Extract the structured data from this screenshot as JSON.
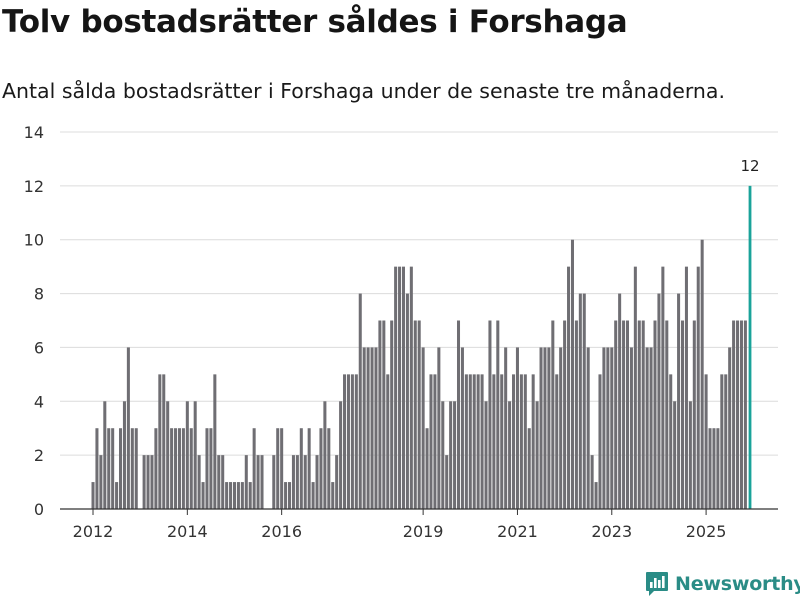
{
  "title": "Tolv bostadsrätter såldes i Forshaga",
  "subtitle": "Antal sålda bostadsrätter i Forshaga under de senaste tre månaderna.",
  "brand": "Newsworthy",
  "colors": {
    "bar": "#6f6e73",
    "highlight": "#1aa39a",
    "grid": "#dcdcdc",
    "axis": "#333333",
    "brand": "#2a8c86"
  },
  "chart_data": {
    "type": "bar",
    "title": "Tolv bostadsrätter såldes i Forshaga",
    "xlabel": "",
    "ylabel": "",
    "ylim": [
      0,
      14
    ],
    "yticks": [
      "0",
      "2",
      "4",
      "6",
      "8",
      "10",
      "12",
      "14"
    ],
    "xticks": [
      {
        "label": "2012",
        "index": 0
      },
      {
        "label": "2014",
        "index": 24
      },
      {
        "label": "2016",
        "index": 48
      },
      {
        "label": "2019",
        "index": 84
      },
      {
        "label": "2021",
        "index": 108
      },
      {
        "label": "2023",
        "index": 132
      },
      {
        "label": "2025",
        "index": 156
      }
    ],
    "start_month": "2012-01",
    "values": [
      1,
      3,
      2,
      4,
      3,
      3,
      1,
      3,
      4,
      6,
      3,
      3,
      0,
      2,
      2,
      2,
      3,
      5,
      5,
      4,
      3,
      3,
      3,
      3,
      4,
      3,
      4,
      2,
      1,
      3,
      3,
      5,
      2,
      2,
      1,
      1,
      1,
      1,
      1,
      2,
      1,
      3,
      2,
      2,
      0,
      0,
      2,
      3,
      3,
      1,
      1,
      2,
      2,
      3,
      2,
      3,
      1,
      2,
      3,
      4,
      3,
      1,
      2,
      4,
      5,
      5,
      5,
      5,
      8,
      6,
      6,
      6,
      6,
      7,
      7,
      5,
      7,
      9,
      9,
      9,
      8,
      9,
      7,
      7,
      6,
      3,
      5,
      5,
      6,
      4,
      2,
      4,
      4,
      7,
      6,
      5,
      5,
      5,
      5,
      5,
      4,
      7,
      5,
      7,
      5,
      6,
      4,
      5,
      6,
      5,
      5,
      3,
      5,
      4,
      6,
      6,
      6,
      7,
      5,
      6,
      7,
      9,
      10,
      7,
      8,
      8,
      6,
      2,
      1,
      5,
      6,
      6,
      6,
      7,
      8,
      7,
      7,
      6,
      9,
      7,
      7,
      6,
      6,
      7,
      8,
      9,
      7,
      5,
      4,
      8,
      7,
      9,
      4,
      7,
      9,
      10,
      5,
      3,
      3,
      3,
      5,
      5,
      6,
      7,
      7,
      7,
      7,
      12
    ],
    "highlight_label": "12",
    "series": [
      {
        "name": "Antal sålda bostadsrätter",
        "values_ref": "values"
      }
    ]
  }
}
